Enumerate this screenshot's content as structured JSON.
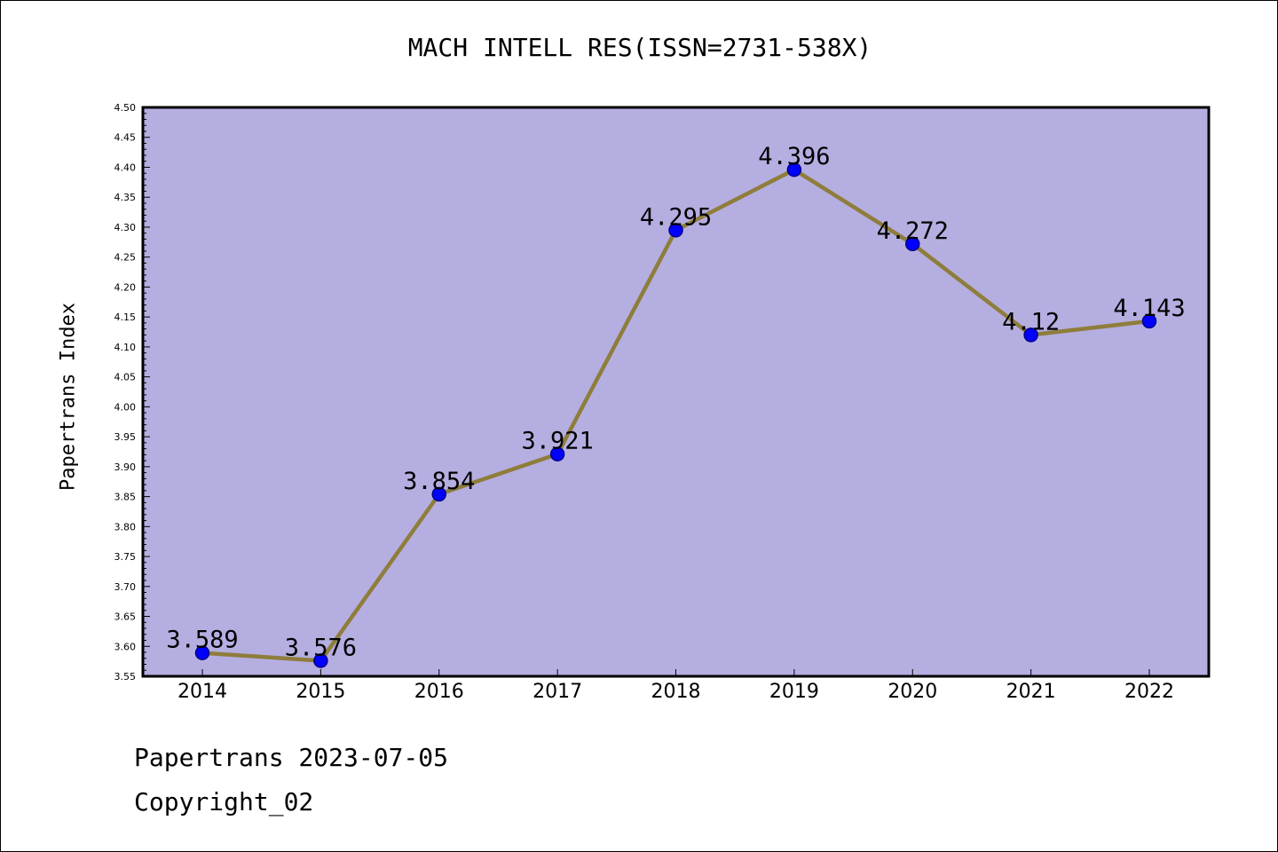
{
  "chart_data": {
    "type": "line",
    "title": "MACH INTELL RES(ISSN=2731-538X)",
    "xlabel": "",
    "ylabel": "Papertrans Index",
    "categories": [
      "2014",
      "2015",
      "2016",
      "2017",
      "2018",
      "2019",
      "2020",
      "2021",
      "2022"
    ],
    "values": [
      3.589,
      3.576,
      3.854,
      3.921,
      4.295,
      4.396,
      4.272,
      4.12,
      4.143
    ],
    "data_labels": [
      "3.589",
      "3.576",
      "3.854",
      "3.921",
      "4.295",
      "4.396",
      "4.272",
      "4.12",
      "4.143"
    ],
    "yticks": [
      "3.55",
      "3.60",
      "3.65",
      "3.70",
      "3.75",
      "3.80",
      "3.85",
      "3.90",
      "3.95",
      "4.00",
      "4.05",
      "4.10",
      "4.15",
      "4.20",
      "4.25",
      "4.30",
      "4.35",
      "4.40",
      "4.45",
      "4.50"
    ],
    "ylim": [
      3.55,
      4.5
    ],
    "grid": false,
    "colors": {
      "plot_background": "#b5aee1",
      "line": "#8e7d3b",
      "marker_fill": "#0000ff",
      "marker_stroke": "#00008b",
      "frame": "#000000"
    }
  },
  "footer": {
    "date_line": "Papertrans 2023-07-05",
    "copyright": "Copyright_02"
  }
}
